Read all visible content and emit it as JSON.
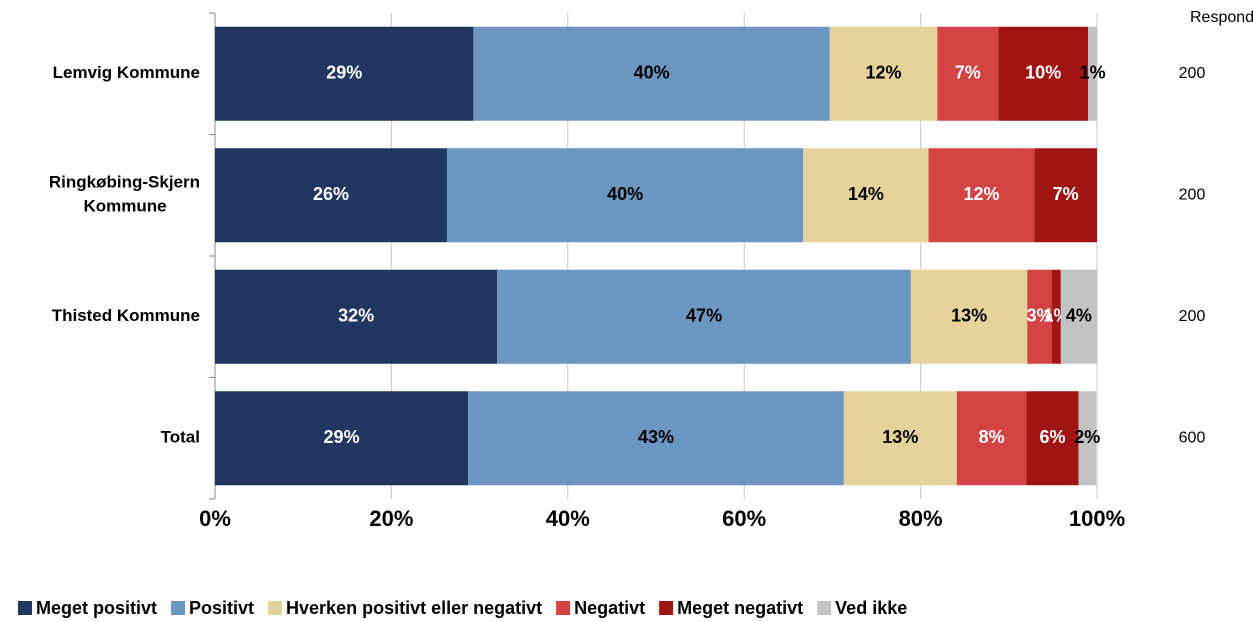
{
  "chart_data": {
    "type": "stacked-bar-horizontal",
    "categories": [
      "Lemvig Kommune",
      "Ringkøbing-Skjern Kommune",
      "Thisted Kommune",
      "Total"
    ],
    "series": [
      {
        "name": "Meget positivt",
        "color": "#203560",
        "values": [
          29.3,
          26.3,
          32.0,
          28.7
        ],
        "value_labels": [
          "29%",
          "26%",
          "32%",
          "29%"
        ]
      },
      {
        "name": "Positivt",
        "color": "#6b96c2",
        "values": [
          40.4,
          40.4,
          46.9,
          42.6
        ],
        "value_labels": [
          "40%",
          "40%",
          "47%",
          "43%"
        ]
      },
      {
        "name": "Hverken positivt eller negativt",
        "color": "#e6d29b",
        "values": [
          12.2,
          14.2,
          13.2,
          12.8
        ],
        "value_labels": [
          "12%",
          "14%",
          "13%",
          "13%"
        ]
      },
      {
        "name": "Negativt",
        "color": "#d34343",
        "values": [
          6.9,
          12.0,
          2.8,
          7.9
        ],
        "value_labels": [
          "7%",
          "12%",
          "3%",
          "8%"
        ]
      },
      {
        "name": "Meget negativt",
        "color": "#a01414",
        "values": [
          10.2,
          7.1,
          1.0,
          5.9
        ],
        "value_labels": [
          "10%",
          "7%",
          "1%",
          "6%"
        ]
      },
      {
        "name": "Ved ikke",
        "color": "#c3c3c3",
        "values": [
          1.0,
          0,
          4.1,
          2.0
        ],
        "value_labels": [
          "1%",
          null,
          "4%",
          "2%"
        ]
      }
    ],
    "xlim": [
      0,
      100
    ],
    "xticks": [
      {
        "value": 0,
        "label": "0%"
      },
      {
        "value": 20,
        "label": "20%"
      },
      {
        "value": 40,
        "label": "40%"
      },
      {
        "value": 60,
        "label": "60%"
      },
      {
        "value": 80,
        "label": "80%"
      },
      {
        "value": 100,
        "label": "100%"
      }
    ],
    "grid": true,
    "legend": "bottom",
    "respondents": {
      "title": "Respondenter",
      "values": [
        200,
        200,
        200,
        600
      ]
    }
  }
}
